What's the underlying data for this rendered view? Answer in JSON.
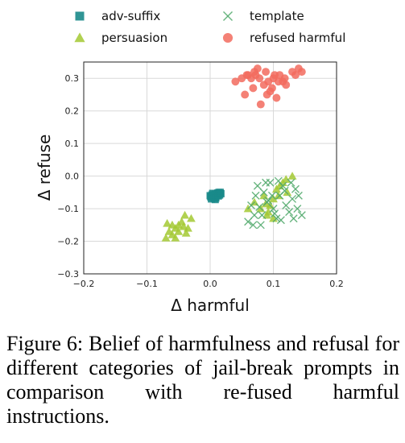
{
  "chart_data": {
    "type": "scatter",
    "xlabel": "Δ harmful",
    "ylabel": "Δ refuse",
    "xlim": [
      -0.2,
      0.2
    ],
    "ylim": [
      -0.3,
      0.35
    ],
    "xticks": [
      -0.2,
      -0.1,
      0.0,
      0.1,
      0.2
    ],
    "yticks": [
      -0.3,
      -0.2,
      -0.1,
      0.0,
      0.1,
      0.2,
      0.3
    ],
    "xtick_labels": [
      "−0.2",
      "−0.1",
      "0.0",
      "0.1",
      "0.2"
    ],
    "ytick_labels": [
      "−0.3",
      "−0.2",
      "−0.1",
      "0.0",
      "0.1",
      "0.2",
      "0.3"
    ],
    "grid": true,
    "legend_position": "top",
    "series": [
      {
        "name": "adv-suffix",
        "marker": "square",
        "color": "#1a8a8a",
        "points": [
          [
            0.0,
            -0.06
          ],
          [
            0.003,
            -0.058
          ],
          [
            0.005,
            -0.065
          ],
          [
            0.008,
            -0.055
          ],
          [
            0.01,
            -0.06
          ],
          [
            0.012,
            -0.052
          ],
          [
            0.015,
            -0.058
          ],
          [
            0.002,
            -0.07
          ],
          [
            0.006,
            -0.062
          ],
          [
            0.009,
            -0.067
          ],
          [
            0.011,
            -0.055
          ],
          [
            0.014,
            -0.05
          ],
          [
            0.017,
            -0.054
          ],
          [
            0.004,
            -0.053
          ],
          [
            0.007,
            -0.068
          ],
          [
            0.001,
            -0.064
          ],
          [
            0.013,
            -0.061
          ],
          [
            0.016,
            -0.05
          ],
          [
            0.008,
            -0.072
          ],
          [
            0.006,
            -0.058
          ]
        ]
      },
      {
        "name": "persuasion",
        "marker": "triangle",
        "color": "#a3c933",
        "points": [
          [
            -0.07,
            -0.19
          ],
          [
            -0.065,
            -0.17
          ],
          [
            -0.06,
            -0.18
          ],
          [
            -0.055,
            -0.16
          ],
          [
            -0.05,
            -0.15
          ],
          [
            -0.045,
            -0.14
          ],
          [
            -0.04,
            -0.12
          ],
          [
            -0.035,
            -0.16
          ],
          [
            -0.03,
            -0.13
          ],
          [
            -0.06,
            -0.15
          ],
          [
            -0.05,
            -0.17
          ],
          [
            -0.042,
            -0.155
          ],
          [
            -0.068,
            -0.145
          ],
          [
            -0.055,
            -0.19
          ],
          [
            -0.038,
            -0.175
          ],
          [
            0.06,
            -0.1
          ],
          [
            0.07,
            -0.08
          ],
          [
            0.08,
            -0.1
          ],
          [
            0.085,
            -0.06
          ],
          [
            0.09,
            -0.12
          ],
          [
            0.095,
            -0.09
          ],
          [
            0.1,
            -0.07
          ],
          [
            0.105,
            -0.04
          ],
          [
            0.11,
            -0.03
          ],
          [
            0.115,
            -0.02
          ],
          [
            0.12,
            -0.01
          ],
          [
            0.13,
            0.0
          ],
          [
            0.1,
            -0.13
          ],
          [
            0.092,
            -0.11
          ],
          [
            0.088,
            -0.085
          ],
          [
            0.108,
            -0.06
          ],
          [
            0.122,
            -0.05
          ]
        ]
      },
      {
        "name": "template",
        "marker": "x",
        "color": "#4fa86a",
        "points": [
          [
            0.06,
            -0.14
          ],
          [
            0.07,
            -0.12
          ],
          [
            0.08,
            -0.15
          ],
          [
            0.085,
            -0.05
          ],
          [
            0.09,
            -0.08
          ],
          [
            0.095,
            -0.02
          ],
          [
            0.1,
            -0.1
          ],
          [
            0.105,
            -0.13
          ],
          [
            0.11,
            -0.06
          ],
          [
            0.115,
            -0.03
          ],
          [
            0.12,
            -0.09
          ],
          [
            0.125,
            -0.11
          ],
          [
            0.13,
            -0.07
          ],
          [
            0.135,
            -0.04
          ],
          [
            0.14,
            -0.06
          ],
          [
            0.145,
            -0.12
          ],
          [
            0.065,
            -0.09
          ],
          [
            0.075,
            -0.03
          ],
          [
            0.082,
            -0.12
          ],
          [
            0.098,
            -0.06
          ],
          [
            0.108,
            -0.015
          ],
          [
            0.118,
            -0.045
          ],
          [
            0.128,
            -0.02
          ],
          [
            0.138,
            -0.1
          ],
          [
            0.072,
            -0.06
          ],
          [
            0.088,
            -0.02
          ],
          [
            0.102,
            -0.115
          ],
          [
            0.112,
            -0.135
          ],
          [
            0.068,
            -0.15
          ],
          [
            0.092,
            -0.075
          ],
          [
            0.132,
            -0.13
          ],
          [
            0.078,
            -0.095
          ]
        ]
      },
      {
        "name": "refused harmful",
        "marker": "circle",
        "color": "#f26b5e",
        "points": [
          [
            0.04,
            0.29
          ],
          [
            0.05,
            0.3
          ],
          [
            0.055,
            0.25
          ],
          [
            0.06,
            0.31
          ],
          [
            0.065,
            0.3
          ],
          [
            0.07,
            0.32
          ],
          [
            0.075,
            0.33
          ],
          [
            0.08,
            0.22
          ],
          [
            0.085,
            0.28
          ],
          [
            0.09,
            0.25
          ],
          [
            0.095,
            0.26
          ],
          [
            0.1,
            0.3
          ],
          [
            0.105,
            0.24
          ],
          [
            0.11,
            0.31
          ],
          [
            0.115,
            0.29
          ],
          [
            0.12,
            0.28
          ],
          [
            0.13,
            0.32
          ],
          [
            0.135,
            0.31
          ],
          [
            0.14,
            0.33
          ],
          [
            0.145,
            0.32
          ],
          [
            0.078,
            0.3
          ],
          [
            0.088,
            0.32
          ],
          [
            0.098,
            0.27
          ],
          [
            0.108,
            0.29
          ],
          [
            0.068,
            0.27
          ],
          [
            0.058,
            0.31
          ],
          [
            0.118,
            0.3
          ],
          [
            0.102,
            0.31
          ],
          [
            0.092,
            0.29
          ],
          [
            0.072,
            0.31
          ]
        ]
      }
    ]
  },
  "caption": "Figure 6:  Belief of harmfulness and refusal for different categories of jail-break prompts in comparison with re-fused harmful instructions."
}
